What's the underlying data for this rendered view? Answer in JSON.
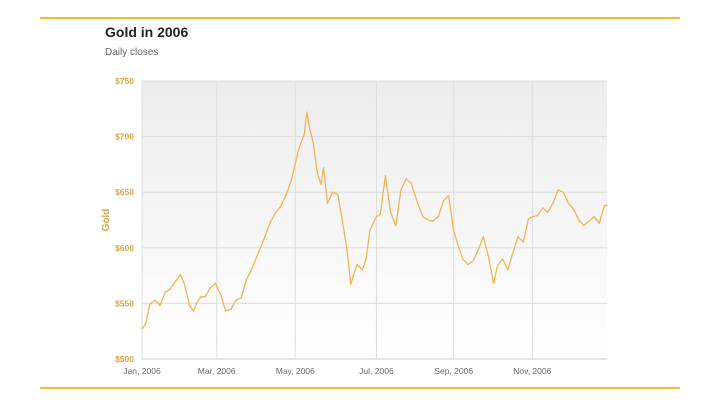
{
  "chart_data": {
    "type": "line",
    "title": "Gold in 2006",
    "subtitle": "Daily closes",
    "ylabel": "Gold",
    "xlabel": "",
    "ylim": [
      500,
      750
    ],
    "yticks": [
      "$500",
      "$550",
      "$600",
      "$650",
      "$700",
      "$750"
    ],
    "ytick_values": [
      500,
      550,
      600,
      650,
      700,
      750
    ],
    "xticks": [
      "Jan, 2006",
      "Mar, 2006",
      "May, 2006",
      "Jul, 2006",
      "Sep, 2006",
      "Nov, 2006"
    ],
    "xtick_dates": [
      "2006-01-02",
      "2006-03-01",
      "2006-05-01",
      "2006-07-03",
      "2006-09-01",
      "2006-11-01"
    ],
    "xlim": [
      "2006-01-02",
      "2006-12-29"
    ],
    "grid": true,
    "legend": "none",
    "colors": {
      "line": "#f0b552",
      "ticks": "#d9a441",
      "rule": "#f0b93a"
    },
    "series": [
      {
        "x": [
          "2006-01-02",
          "2006-01-05",
          "2006-01-08",
          "2006-01-12",
          "2006-01-16",
          "2006-01-20",
          "2006-01-24",
          "2006-01-28",
          "2006-02-01",
          "2006-02-04",
          "2006-02-08",
          "2006-02-11",
          "2006-02-14",
          "2006-02-17",
          "2006-02-20",
          "2006-02-24",
          "2006-02-28",
          "2006-03-04",
          "2006-03-08",
          "2006-03-12",
          "2006-03-16",
          "2006-03-20",
          "2006-03-24",
          "2006-03-28",
          "2006-04-01",
          "2006-04-04",
          "2006-04-08",
          "2006-04-12",
          "2006-04-16",
          "2006-04-20",
          "2006-04-24",
          "2006-04-28",
          "2006-05-01",
          "2006-05-04",
          "2006-05-08",
          "2006-05-10",
          "2006-05-12",
          "2006-05-15",
          "2006-05-18",
          "2006-05-21",
          "2006-05-23",
          "2006-05-26",
          "2006-05-30",
          "2006-06-03",
          "2006-06-06",
          "2006-06-10",
          "2006-06-13",
          "2006-06-15",
          "2006-06-18",
          "2006-06-22",
          "2006-06-25",
          "2006-06-28",
          "2006-07-03",
          "2006-07-06",
          "2006-07-10",
          "2006-07-14",
          "2006-07-18",
          "2006-07-22",
          "2006-07-26",
          "2006-07-30",
          "2006-08-04",
          "2006-08-08",
          "2006-08-12",
          "2006-08-16",
          "2006-08-20",
          "2006-08-24",
          "2006-08-28",
          "2006-09-01",
          "2006-09-05",
          "2006-09-08",
          "2006-09-12",
          "2006-09-16",
          "2006-09-20",
          "2006-09-24",
          "2006-09-28",
          "2006-10-02",
          "2006-10-05",
          "2006-10-09",
          "2006-10-13",
          "2006-10-17",
          "2006-10-21",
          "2006-10-25",
          "2006-10-29",
          "2006-11-01",
          "2006-11-05",
          "2006-11-09",
          "2006-11-13",
          "2006-11-17",
          "2006-11-21",
          "2006-11-25",
          "2006-11-29",
          "2006-12-03",
          "2006-12-07",
          "2006-12-11",
          "2006-12-15",
          "2006-12-19",
          "2006-12-23",
          "2006-12-27",
          "2006-12-29"
        ],
        "y": [
          527,
          532,
          549,
          553,
          548,
          560,
          563,
          570,
          576,
          567,
          548,
          543,
          552,
          556,
          556,
          564,
          568,
          558,
          543,
          545,
          553,
          555,
          571,
          580,
          592,
          600,
          612,
          624,
          632,
          638,
          648,
          661,
          676,
          690,
          702,
          722,
          708,
          694,
          668,
          657,
          672,
          640,
          650,
          648,
          628,
          600,
          567,
          575,
          585,
          580,
          590,
          616,
          628,
          630,
          665,
          632,
          620,
          652,
          662,
          658,
          640,
          628,
          625,
          624,
          628,
          642,
          647,
          615,
          600,
          590,
          585,
          588,
          598,
          610,
          592,
          568,
          584,
          590,
          580,
          596,
          610,
          605,
          626,
          628,
          629,
          636,
          632,
          640,
          652,
          650,
          640,
          635,
          625,
          620,
          624,
          628,
          622,
          638,
          638
        ]
      }
    ]
  }
}
